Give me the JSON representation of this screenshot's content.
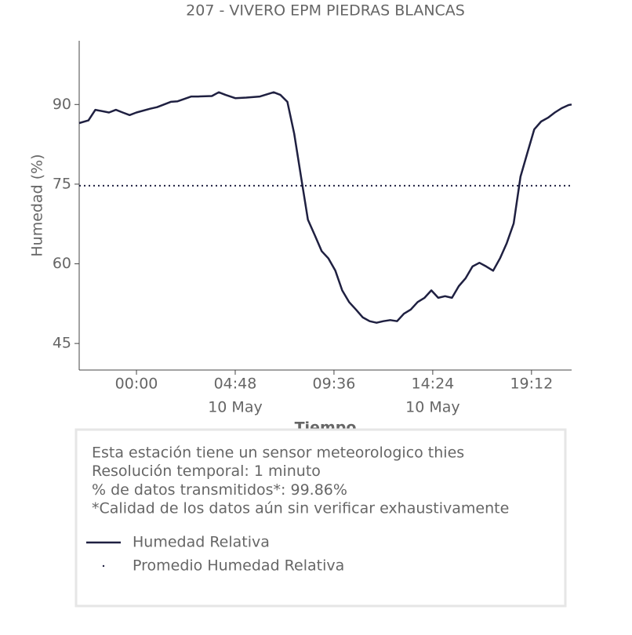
{
  "chart_data": {
    "type": "line",
    "title": "207 - VIVERO EPM PIEDRAS BLANCAS",
    "ylabel": "Humedad (%)",
    "xlabel": "Tiempo",
    "ylim": [
      40,
      102
    ],
    "yticks": [
      45,
      60,
      75,
      90
    ],
    "xlim": [
      "9 May 21:13",
      "10 May 21:09"
    ],
    "xticks": [
      {
        "value": "10 May 00:00",
        "label": "00:00"
      },
      {
        "value": "10 May 04:48",
        "label": "04:48",
        "date": "10 May"
      },
      {
        "value": "10 May 09:36",
        "label": "09:36"
      },
      {
        "value": "10 May 14:24",
        "label": "14:24",
        "date": "10 May"
      },
      {
        "value": "10 May 19:12",
        "label": "19:12"
      }
    ],
    "x": [
      "9 May 21:13",
      "9 May 21:40",
      "9 May 22:00",
      "9 May 22:40",
      "9 May 23:00",
      "9 May 23:20",
      "9 May 23:40",
      "10 May 00:00",
      "10 May 00:40",
      "10 May 01:00",
      "10 May 01:40",
      "10 May 02:00",
      "10 May 02:40",
      "10 May 03:00",
      "10 May 03:40",
      "10 May 04:00",
      "10 May 04:20",
      "10 May 04:48",
      "10 May 05:20",
      "10 May 06:00",
      "10 May 06:40",
      "10 May 07:00",
      "10 May 07:20",
      "10 May 07:40",
      "10 May 08:00",
      "10 May 08:20",
      "10 May 08:40",
      "10 May 09:00",
      "10 May 09:20",
      "10 May 09:40",
      "10 May 10:00",
      "10 May 10:20",
      "10 May 10:40",
      "10 May 11:00",
      "10 May 11:20",
      "10 May 11:40",
      "10 May 12:00",
      "10 May 12:20",
      "10 May 12:40",
      "10 May 13:00",
      "10 May 13:20",
      "10 May 13:40",
      "10 May 14:00",
      "10 May 14:20",
      "10 May 14:40",
      "10 May 15:00",
      "10 May 15:20",
      "10 May 15:40",
      "10 May 16:00",
      "10 May 16:20",
      "10 May 16:40",
      "10 May 17:00",
      "10 May 17:20",
      "10 May 17:40",
      "10 May 18:00",
      "10 May 18:20",
      "10 May 18:40",
      "10 May 19:00",
      "10 May 19:20",
      "10 May 19:40",
      "10 May 20:00",
      "10 May 20:20",
      "10 May 20:40",
      "10 May 21:00",
      "10 May 21:09"
    ],
    "series": [
      {
        "name": "Humedad Relativa",
        "color": "#1f2041",
        "values": [
          86.5,
          87,
          89,
          88.5,
          89,
          88.5,
          88,
          88.5,
          89.2,
          89.5,
          90.5,
          90.6,
          91.5,
          91.5,
          91.6,
          92.3,
          91.8,
          91.2,
          91.3,
          91.5,
          92.3,
          91.8,
          90.5,
          84.5,
          76.4,
          68.3,
          65.4,
          62.4,
          61,
          58.7,
          55,
          52.8,
          51.4,
          49.9,
          49.2,
          48.9,
          49.2,
          49.4,
          49.2,
          50.6,
          51.4,
          52.8,
          53.6,
          55,
          53.6,
          53.9,
          53.6,
          55.8,
          57.3,
          59.5,
          60.2,
          59.5,
          58.7,
          61,
          63.9,
          67.6,
          76.4,
          80.9,
          85.3,
          86.8,
          87.5,
          88.5,
          89.3,
          89.9,
          90
        ]
      }
    ],
    "average": {
      "name": "Promedio Humedad Relativa",
      "value": 74.7,
      "color": "#1f2041",
      "linestyle": "dotted"
    },
    "notes": [
      "Esta estación tiene un sensor meteorologico thies",
      "Resolución temporal: 1 minuto",
      "% de datos transmitidos*: 99.86%",
      "*Calidad de los datos aún sin verificar exhaustivamente"
    ]
  }
}
